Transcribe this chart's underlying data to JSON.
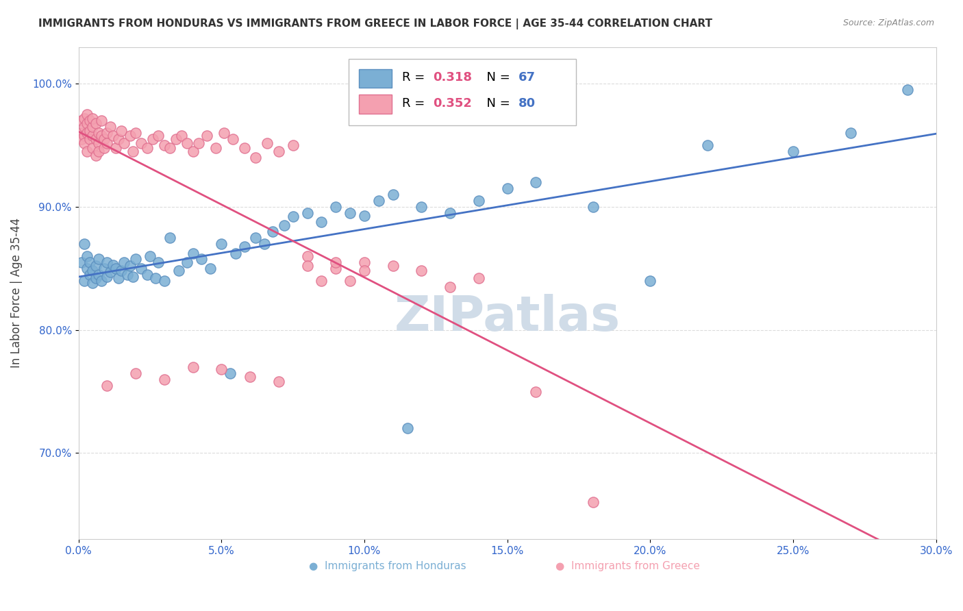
{
  "title": "IMMIGRANTS FROM HONDURAS VS IMMIGRANTS FROM GREECE IN LABOR FORCE | AGE 35-44 CORRELATION CHART",
  "source": "Source: ZipAtlas.com",
  "ylabel": "In Labor Force | Age 35-44",
  "xlim": [
    0.0,
    0.3
  ],
  "ylim": [
    0.63,
    1.03
  ],
  "yticks": [
    0.7,
    0.8,
    0.9,
    1.0
  ],
  "ytick_labels": [
    "70.0%",
    "80.0%",
    "90.0%",
    "100.0%"
  ],
  "xticks": [
    0.0,
    0.05,
    0.1,
    0.15,
    0.2,
    0.25,
    0.3
  ],
  "xtick_labels": [
    "0.0%",
    "5.0%",
    "10.0%",
    "15.0%",
    "20.0%",
    "25.0%",
    "30.0%"
  ],
  "honduras_color": "#7bafd4",
  "greece_color": "#f4a0b0",
  "honduras_edge": "#5b8fbf",
  "greece_edge": "#e07090",
  "line_honduras": "#4472c4",
  "line_greece": "#e05080",
  "r_honduras": 0.318,
  "n_honduras": 67,
  "r_greece": 0.352,
  "n_greece": 80,
  "legend_r_color": "#e05080",
  "legend_n_color": "#4472c4",
  "watermark": "ZIPatlas",
  "watermark_color": "#d0dce8",
  "tick_color": "#3366cc",
  "honduras_x": [
    0.001,
    0.002,
    0.002,
    0.003,
    0.003,
    0.004,
    0.004,
    0.005,
    0.005,
    0.006,
    0.006,
    0.007,
    0.007,
    0.008,
    0.009,
    0.01,
    0.01,
    0.011,
    0.012,
    0.013,
    0.014,
    0.015,
    0.016,
    0.017,
    0.018,
    0.019,
    0.02,
    0.022,
    0.024,
    0.025,
    0.027,
    0.028,
    0.03,
    0.032,
    0.035,
    0.038,
    0.04,
    0.043,
    0.046,
    0.05,
    0.053,
    0.055,
    0.058,
    0.062,
    0.065,
    0.068,
    0.072,
    0.075,
    0.08,
    0.085,
    0.09,
    0.095,
    0.1,
    0.105,
    0.11,
    0.115,
    0.12,
    0.13,
    0.14,
    0.15,
    0.16,
    0.18,
    0.2,
    0.22,
    0.25,
    0.27,
    0.29
  ],
  "honduras_y": [
    0.855,
    0.84,
    0.87,
    0.85,
    0.86,
    0.845,
    0.855,
    0.848,
    0.838,
    0.852,
    0.842,
    0.858,
    0.845,
    0.84,
    0.85,
    0.843,
    0.855,
    0.847,
    0.853,
    0.85,
    0.842,
    0.848,
    0.855,
    0.845,
    0.852,
    0.843,
    0.858,
    0.85,
    0.845,
    0.86,
    0.842,
    0.855,
    0.84,
    0.875,
    0.848,
    0.855,
    0.862,
    0.858,
    0.85,
    0.87,
    0.765,
    0.862,
    0.868,
    0.875,
    0.87,
    0.88,
    0.885,
    0.892,
    0.895,
    0.888,
    0.9,
    0.895,
    0.893,
    0.905,
    0.91,
    0.72,
    0.9,
    0.895,
    0.905,
    0.915,
    0.92,
    0.9,
    0.84,
    0.95,
    0.945,
    0.96,
    0.995
  ],
  "greece_x": [
    0.001,
    0.001,
    0.001,
    0.002,
    0.002,
    0.002,
    0.002,
    0.003,
    0.003,
    0.003,
    0.003,
    0.004,
    0.004,
    0.004,
    0.005,
    0.005,
    0.005,
    0.005,
    0.006,
    0.006,
    0.006,
    0.007,
    0.007,
    0.007,
    0.008,
    0.008,
    0.009,
    0.009,
    0.01,
    0.01,
    0.011,
    0.012,
    0.013,
    0.014,
    0.015,
    0.016,
    0.018,
    0.019,
    0.02,
    0.022,
    0.024,
    0.026,
    0.028,
    0.03,
    0.032,
    0.034,
    0.036,
    0.038,
    0.04,
    0.042,
    0.045,
    0.048,
    0.051,
    0.054,
    0.058,
    0.062,
    0.066,
    0.07,
    0.075,
    0.08,
    0.085,
    0.09,
    0.095,
    0.1,
    0.11,
    0.12,
    0.13,
    0.14,
    0.16,
    0.18,
    0.01,
    0.02,
    0.03,
    0.04,
    0.05,
    0.06,
    0.07,
    0.08,
    0.09,
    0.1
  ],
  "greece_y": [
    0.96,
    0.955,
    0.97,
    0.958,
    0.965,
    0.972,
    0.952,
    0.96,
    0.968,
    0.945,
    0.975,
    0.962,
    0.955,
    0.97,
    0.958,
    0.948,
    0.965,
    0.972,
    0.955,
    0.968,
    0.942,
    0.96,
    0.952,
    0.945,
    0.958,
    0.97,
    0.955,
    0.948,
    0.96,
    0.952,
    0.965,
    0.958,
    0.948,
    0.955,
    0.962,
    0.952,
    0.958,
    0.945,
    0.96,
    0.952,
    0.948,
    0.955,
    0.958,
    0.95,
    0.948,
    0.955,
    0.958,
    0.952,
    0.945,
    0.952,
    0.958,
    0.948,
    0.96,
    0.955,
    0.948,
    0.94,
    0.952,
    0.945,
    0.95,
    0.86,
    0.84,
    0.85,
    0.84,
    0.855,
    0.852,
    0.848,
    0.835,
    0.842,
    0.75,
    0.66,
    0.755,
    0.765,
    0.76,
    0.77,
    0.768,
    0.762,
    0.758,
    0.852,
    0.855,
    0.848
  ]
}
